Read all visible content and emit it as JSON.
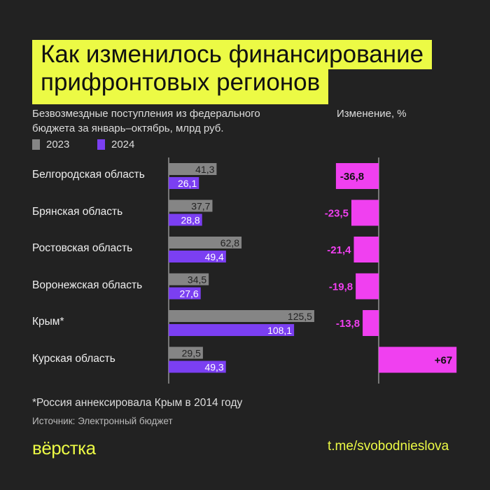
{
  "title": [
    "Как изменилось финансирование",
    "прифронтовых регионов"
  ],
  "subtitle": [
    "Безвозмездные поступления из федерального",
    "бюджета за январь–октябрь, млрд руб."
  ],
  "change_header": "Изменение, %",
  "colors": {
    "background": "#222222",
    "accent": "#ecfa45",
    "y2023": "#858585",
    "y2024": "#7b3ff2",
    "change": "#f040f0"
  },
  "chart_data": [
    {
      "type": "bar",
      "orientation": "horizontal",
      "categories": [
        "Белгородская область",
        "Брянская область",
        "Ростовская область",
        "Воронежская область",
        "Крым*",
        "Курская область"
      ],
      "series": [
        {
          "name": "2023",
          "values": [
            41.3,
            37.7,
            62.8,
            34.5,
            125.5,
            29.5
          ],
          "labels": [
            "41,3",
            "37,7",
            "62,8",
            "34,5",
            "125,5",
            "29,5"
          ]
        },
        {
          "name": "2024",
          "values": [
            26.1,
            28.8,
            49.4,
            27.6,
            108.1,
            49.3
          ],
          "labels": [
            "26,1",
            "28,8",
            "49,4",
            "27,6",
            "108,1",
            "49,3"
          ]
        }
      ],
      "legend": "top-left"
    },
    {
      "type": "bar",
      "orientation": "horizontal",
      "title": "Изменение, %",
      "categories": [
        "Белгородская область",
        "Брянская область",
        "Ростовская область",
        "Воронежская область",
        "Крым*",
        "Курская область"
      ],
      "values": [
        -36.8,
        -23.5,
        -21.4,
        -19.8,
        -13.8,
        67
      ],
      "labels": [
        "-36,8",
        "-23,5",
        "-21,4",
        "-19,8",
        "-13,8",
        "+67"
      ]
    }
  ],
  "footnote": "*Россия аннексировала Крым в 2014 году",
  "source": "Источник: Электронный бюджет",
  "logo": "вёрстка",
  "link": "t.me/svobodnieslova"
}
